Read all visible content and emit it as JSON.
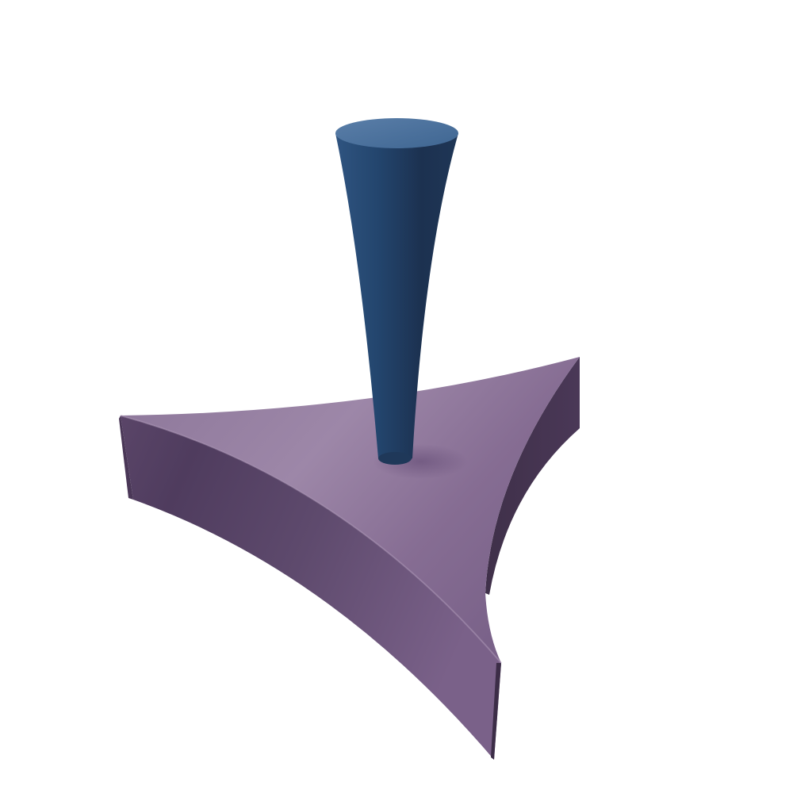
{
  "scene": {
    "background_color": "#ffffff",
    "objects": [
      {
        "name": "tapered-post",
        "shape": "tapered cylinder",
        "color": "#2b4a72"
      },
      {
        "name": "concave-triangular-base",
        "shape": "concave-sided triangular slab",
        "color": "#8a7197"
      }
    ]
  }
}
